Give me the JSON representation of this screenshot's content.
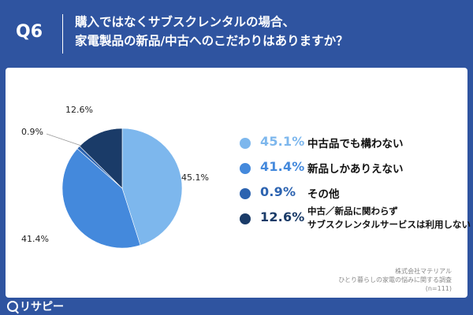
{
  "header": {
    "question_number": "Q6",
    "question_line1": "購入ではなくサブスクレンタルの場合、",
    "question_line2": "家電製品の新品/中古へのこだわりはありますか？"
  },
  "chart_data": {
    "type": "pie",
    "start": "12 o'clock, clockwise",
    "slices": [
      {
        "label": "中古品でも構わない",
        "value": 45.1,
        "display": "45.1%",
        "color": "#7db7ed"
      },
      {
        "label": "新品しかありえない",
        "value": 41.4,
        "display": "41.4%",
        "color": "#4489dc"
      },
      {
        "label": "その他",
        "value": 0.9,
        "display": "0.9%",
        "color": "#2c63b0"
      },
      {
        "label_line1": "中古／新品に関わらず",
        "label_line2": "サブスクレンタルサービスは利用しない",
        "value": 12.6,
        "display": "12.6%",
        "color": "#1a3b68"
      }
    ]
  },
  "source": {
    "line1": "株式会社マテリアル",
    "line2": "ひとり暮らしの家電の悩みに関する調査",
    "line3": "(n=111)"
  },
  "brand": {
    "name": "リサピー"
  },
  "colors": {
    "background": "#2f54a0",
    "panel": "#ffffff"
  }
}
